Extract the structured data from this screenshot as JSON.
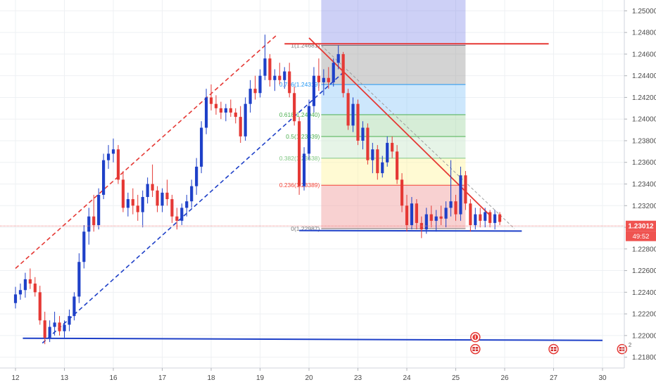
{
  "chart_data": {
    "type": "candlestick",
    "instrument_hint": "GBP/USD style price chart",
    "x_axis": {
      "ticks": [
        "12",
        "13",
        "16",
        "17",
        "18",
        "19",
        "20",
        "23",
        "24",
        "25",
        "26",
        "27",
        "30"
      ]
    },
    "y_axis": {
      "range": [
        1.217,
        1.251
      ],
      "ticks": [
        "1.21800",
        "1.22000",
        "1.22200",
        "1.22400",
        "1.22600",
        "1.22800",
        "1.23000",
        "1.23200",
        "1.23400",
        "1.23600",
        "1.23800",
        "1.24000",
        "1.24200",
        "1.24400",
        "1.24600",
        "1.24800",
        "1.25000"
      ]
    },
    "current_price": {
      "value": 1.23012,
      "label": "1.23012",
      "countdown": "49:52"
    },
    "fibonacci": {
      "start": {
        "x": 6.25,
        "price": 1.24681
      },
      "end": {
        "x": 9.2,
        "price": 1.22987
      },
      "levels": [
        {
          "ratio": 1,
          "price": 1.24681,
          "label": "1(1.24681)",
          "color": "#787878"
        },
        {
          "ratio": 0.786,
          "price": 1.24319,
          "label": "0.786(1.24319)",
          "color": "#2196f3"
        },
        {
          "ratio": 0.618,
          "price": 1.2404,
          "label": "0.618(1.24040)",
          "color": "#4caf50"
        },
        {
          "ratio": 0.5,
          "price": 1.23839,
          "label": "0.5(1.23839)",
          "color": "#4caf50"
        },
        {
          "ratio": 0.382,
          "price": 1.23638,
          "label": "0.382(1.23638)",
          "color": "#81c784"
        },
        {
          "ratio": 0.236,
          "price": 1.23389,
          "label": "0.236(1.23389)",
          "color": "#f44336"
        },
        {
          "ratio": 0,
          "price": 1.22987,
          "label": "0(1.22987)",
          "color": "#787878"
        }
      ],
      "zones": [
        {
          "from": 1.24681,
          "to": 1.24319,
          "color": "#9e9e9e"
        },
        {
          "from": 1.24319,
          "to": 1.2404,
          "color": "#90caf9"
        },
        {
          "from": 1.2404,
          "to": 1.23839,
          "color": "#a5d6a7"
        },
        {
          "from": 1.23839,
          "to": 1.23638,
          "color": "#c8e6c9"
        },
        {
          "from": 1.23638,
          "to": 1.23389,
          "color": "#fff59d"
        },
        {
          "from": 1.23389,
          "to": 1.22987,
          "color": "#ef9a9a"
        }
      ],
      "top_zone": {
        "from": 1.251,
        "to": 1.24681,
        "color": "#7c83e8"
      }
    },
    "drawings": {
      "channel_upper": {
        "x1": 0.0,
        "p1": 1.2262,
        "x2": 5.35,
        "p2": 1.2478,
        "color": "#e53935",
        "style": "dashed"
      },
      "channel_lower": {
        "x1": 0.55,
        "p1": 1.2193,
        "x2": 6.7,
        "p2": 1.2443,
        "color": "#1e40c8",
        "style": "dashed"
      },
      "support": {
        "x1": 0.15,
        "p1": 1.21975,
        "x2": 12.0,
        "p2": 1.21955,
        "color": "#1e40c8"
      },
      "fib_base": {
        "x1": 5.8,
        "p1": 1.2297,
        "x2": 10.35,
        "p2": 1.22965,
        "color": "#1e40c8"
      },
      "resistance": {
        "x1": 5.5,
        "p1": 1.24695,
        "x2": 10.9,
        "p2": 1.24695,
        "color": "#e53935"
      },
      "downtrend": {
        "x1": 6.0,
        "p1": 1.2475,
        "x2": 9.7,
        "p2": 1.2311,
        "color": "#e53935"
      },
      "diagonal_dotted": {
        "x1": 6.25,
        "p1": 1.24681,
        "x2": 10.2,
        "p2": 1.22987,
        "color": "#9e9e9e"
      }
    },
    "events": [
      {
        "x": 9.4,
        "y_top": 1.21985,
        "icon": "alert-icon",
        "color": "#e53935"
      },
      {
        "x": 9.4,
        "y_top": 1.21875,
        "icon": "flag-icon",
        "color": "#e53935"
      },
      {
        "x": 11.0,
        "y_top": 1.21875,
        "icon": "flag-icon",
        "color": "#e53935"
      },
      {
        "x": 12.4,
        "y_top": 1.21875,
        "icon": "flag-icon",
        "color": "#e53935"
      }
    ],
    "events_overflow_label": "2",
    "candles": [
      {
        "x": 0.0,
        "o": 1.223,
        "h": 1.2245,
        "l": 1.2225,
        "c": 1.2238
      },
      {
        "x": 0.1,
        "o": 1.2238,
        "h": 1.2248,
        "l": 1.2233,
        "c": 1.2242
      },
      {
        "x": 0.2,
        "o": 1.2242,
        "h": 1.2258,
        "l": 1.2235,
        "c": 1.2252
      },
      {
        "x": 0.3,
        "o": 1.2252,
        "h": 1.2262,
        "l": 1.2243,
        "c": 1.2248
      },
      {
        "x": 0.4,
        "o": 1.2248,
        "h": 1.2254,
        "l": 1.2236,
        "c": 1.224
      },
      {
        "x": 0.5,
        "o": 1.224,
        "h": 1.2246,
        "l": 1.221,
        "c": 1.2214
      },
      {
        "x": 0.6,
        "o": 1.2214,
        "h": 1.2222,
        "l": 1.2192,
        "c": 1.2198
      },
      {
        "x": 0.7,
        "o": 1.2198,
        "h": 1.2214,
        "l": 1.2194,
        "c": 1.2208
      },
      {
        "x": 0.8,
        "o": 1.2208,
        "h": 1.2222,
        "l": 1.22,
        "c": 1.2212
      },
      {
        "x": 0.9,
        "o": 1.2212,
        "h": 1.2218,
        "l": 1.22,
        "c": 1.2204
      },
      {
        "x": 1.0,
        "o": 1.2204,
        "h": 1.2214,
        "l": 1.2198,
        "c": 1.221
      },
      {
        "x": 1.1,
        "o": 1.221,
        "h": 1.2224,
        "l": 1.2204,
        "c": 1.2218
      },
      {
        "x": 1.2,
        "o": 1.2218,
        "h": 1.224,
        "l": 1.2214,
        "c": 1.2236
      },
      {
        "x": 1.3,
        "o": 1.2236,
        "h": 1.2276,
        "l": 1.223,
        "c": 1.2268
      },
      {
        "x": 1.4,
        "o": 1.2268,
        "h": 1.2302,
        "l": 1.2262,
        "c": 1.2296
      },
      {
        "x": 1.5,
        "o": 1.2296,
        "h": 1.2318,
        "l": 1.2284,
        "c": 1.231
      },
      {
        "x": 1.6,
        "o": 1.231,
        "h": 1.233,
        "l": 1.2296,
        "c": 1.2302
      },
      {
        "x": 1.7,
        "o": 1.2302,
        "h": 1.2336,
        "l": 1.2298,
        "c": 1.233
      },
      {
        "x": 1.8,
        "o": 1.233,
        "h": 1.2368,
        "l": 1.2326,
        "c": 1.2362
      },
      {
        "x": 1.9,
        "o": 1.2362,
        "h": 1.2376,
        "l": 1.2354,
        "c": 1.2368
      },
      {
        "x": 2.0,
        "o": 1.2368,
        "h": 1.2382,
        "l": 1.236,
        "c": 1.2372
      },
      {
        "x": 2.1,
        "o": 1.2372,
        "h": 1.2376,
        "l": 1.234,
        "c": 1.2344
      },
      {
        "x": 2.2,
        "o": 1.2344,
        "h": 1.2352,
        "l": 1.2314,
        "c": 1.2318
      },
      {
        "x": 2.3,
        "o": 1.2318,
        "h": 1.2332,
        "l": 1.231,
        "c": 1.2326
      },
      {
        "x": 2.4,
        "o": 1.2326,
        "h": 1.2336,
        "l": 1.2312,
        "c": 1.232
      },
      {
        "x": 2.5,
        "o": 1.232,
        "h": 1.233,
        "l": 1.2306,
        "c": 1.2314
      },
      {
        "x": 2.6,
        "o": 1.2314,
        "h": 1.2334,
        "l": 1.23,
        "c": 1.2328
      },
      {
        "x": 2.7,
        "o": 1.2328,
        "h": 1.2346,
        "l": 1.2322,
        "c": 1.234
      },
      {
        "x": 2.8,
        "o": 1.234,
        "h": 1.2358,
        "l": 1.2328,
        "c": 1.2334
      },
      {
        "x": 2.9,
        "o": 1.2334,
        "h": 1.2338,
        "l": 1.2314,
        "c": 1.232
      },
      {
        "x": 3.0,
        "o": 1.232,
        "h": 1.2336,
        "l": 1.2314,
        "c": 1.2332
      },
      {
        "x": 3.1,
        "o": 1.2332,
        "h": 1.2344,
        "l": 1.232,
        "c": 1.2326
      },
      {
        "x": 3.2,
        "o": 1.2326,
        "h": 1.233,
        "l": 1.2304,
        "c": 1.231
      },
      {
        "x": 3.3,
        "o": 1.231,
        "h": 1.2318,
        "l": 1.2298,
        "c": 1.2306
      },
      {
        "x": 3.4,
        "o": 1.2306,
        "h": 1.2322,
        "l": 1.2302,
        "c": 1.2318
      },
      {
        "x": 3.5,
        "o": 1.2318,
        "h": 1.233,
        "l": 1.231,
        "c": 1.2324
      },
      {
        "x": 3.6,
        "o": 1.2324,
        "h": 1.2344,
        "l": 1.2318,
        "c": 1.2338
      },
      {
        "x": 3.7,
        "o": 1.2338,
        "h": 1.2364,
        "l": 1.233,
        "c": 1.2356
      },
      {
        "x": 3.8,
        "o": 1.2356,
        "h": 1.2398,
        "l": 1.235,
        "c": 1.2392
      },
      {
        "x": 3.9,
        "o": 1.2392,
        "h": 1.2428,
        "l": 1.2386,
        "c": 1.242
      },
      {
        "x": 4.0,
        "o": 1.242,
        "h": 1.2432,
        "l": 1.2408,
        "c": 1.2414
      },
      {
        "x": 4.1,
        "o": 1.2414,
        "h": 1.2422,
        "l": 1.2404,
        "c": 1.241
      },
      {
        "x": 4.2,
        "o": 1.241,
        "h": 1.2416,
        "l": 1.24,
        "c": 1.2406
      },
      {
        "x": 4.3,
        "o": 1.2406,
        "h": 1.2414,
        "l": 1.2398,
        "c": 1.241
      },
      {
        "x": 4.4,
        "o": 1.241,
        "h": 1.2418,
        "l": 1.2402,
        "c": 1.2406
      },
      {
        "x": 4.5,
        "o": 1.2406,
        "h": 1.241,
        "l": 1.2396,
        "c": 1.2402
      },
      {
        "x": 4.6,
        "o": 1.2402,
        "h": 1.2412,
        "l": 1.2378,
        "c": 1.2384
      },
      {
        "x": 4.7,
        "o": 1.2384,
        "h": 1.242,
        "l": 1.238,
        "c": 1.2414
      },
      {
        "x": 4.8,
        "o": 1.2414,
        "h": 1.2436,
        "l": 1.2406,
        "c": 1.2428
      },
      {
        "x": 4.9,
        "o": 1.2428,
        "h": 1.244,
        "l": 1.2418,
        "c": 1.2424
      },
      {
        "x": 5.0,
        "o": 1.2424,
        "h": 1.2446,
        "l": 1.242,
        "c": 1.244
      },
      {
        "x": 5.1,
        "o": 1.244,
        "h": 1.2478,
        "l": 1.2436,
        "c": 1.2456
      },
      {
        "x": 5.2,
        "o": 1.2456,
        "h": 1.246,
        "l": 1.243,
        "c": 1.2436
      },
      {
        "x": 5.3,
        "o": 1.2436,
        "h": 1.2446,
        "l": 1.2426,
        "c": 1.244
      },
      {
        "x": 5.4,
        "o": 1.244,
        "h": 1.2452,
        "l": 1.2432,
        "c": 1.2436
      },
      {
        "x": 5.5,
        "o": 1.2436,
        "h": 1.2448,
        "l": 1.2428,
        "c": 1.2444
      },
      {
        "x": 5.6,
        "o": 1.2444,
        "h": 1.2452,
        "l": 1.242,
        "c": 1.2424
      },
      {
        "x": 5.7,
        "o": 1.2424,
        "h": 1.243,
        "l": 1.2394,
        "c": 1.2398
      },
      {
        "x": 5.8,
        "o": 1.2398,
        "h": 1.2402,
        "l": 1.233,
        "c": 1.2338
      },
      {
        "x": 5.9,
        "o": 1.2338,
        "h": 1.2374,
        "l": 1.2334,
        "c": 1.2368
      },
      {
        "x": 6.0,
        "o": 1.2368,
        "h": 1.2418,
        "l": 1.2362,
        "c": 1.2412
      },
      {
        "x": 6.1,
        "o": 1.2412,
        "h": 1.2448,
        "l": 1.2406,
        "c": 1.244
      },
      {
        "x": 6.2,
        "o": 1.244,
        "h": 1.2456,
        "l": 1.2426,
        "c": 1.2434
      },
      {
        "x": 6.3,
        "o": 1.2434,
        "h": 1.2446,
        "l": 1.2422,
        "c": 1.2438
      },
      {
        "x": 6.4,
        "o": 1.2438,
        "h": 1.2448,
        "l": 1.2428,
        "c": 1.2434
      },
      {
        "x": 6.5,
        "o": 1.2434,
        "h": 1.2456,
        "l": 1.243,
        "c": 1.2452
      },
      {
        "x": 6.6,
        "o": 1.2452,
        "h": 1.2468,
        "l": 1.2446,
        "c": 1.246
      },
      {
        "x": 6.7,
        "o": 1.246,
        "h": 1.2462,
        "l": 1.242,
        "c": 1.2424
      },
      {
        "x": 6.8,
        "o": 1.2424,
        "h": 1.2428,
        "l": 1.239,
        "c": 1.2394
      },
      {
        "x": 6.9,
        "o": 1.2394,
        "h": 1.242,
        "l": 1.2388,
        "c": 1.2414
      },
      {
        "x": 7.0,
        "o": 1.2414,
        "h": 1.2418,
        "l": 1.2376,
        "c": 1.238
      },
      {
        "x": 7.1,
        "o": 1.238,
        "h": 1.2398,
        "l": 1.2372,
        "c": 1.2392
      },
      {
        "x": 7.2,
        "o": 1.2392,
        "h": 1.2396,
        "l": 1.2358,
        "c": 1.2362
      },
      {
        "x": 7.3,
        "o": 1.2362,
        "h": 1.2378,
        "l": 1.235,
        "c": 1.2372
      },
      {
        "x": 7.4,
        "o": 1.2372,
        "h": 1.2376,
        "l": 1.2344,
        "c": 1.235
      },
      {
        "x": 7.5,
        "o": 1.235,
        "h": 1.2366,
        "l": 1.2346,
        "c": 1.236
      },
      {
        "x": 7.6,
        "o": 1.236,
        "h": 1.2384,
        "l": 1.2356,
        "c": 1.2378
      },
      {
        "x": 7.7,
        "o": 1.2378,
        "h": 1.2384,
        "l": 1.2364,
        "c": 1.237
      },
      {
        "x": 7.8,
        "o": 1.237,
        "h": 1.2376,
        "l": 1.234,
        "c": 1.2344
      },
      {
        "x": 7.9,
        "o": 1.2344,
        "h": 1.235,
        "l": 1.2314,
        "c": 1.232
      },
      {
        "x": 8.0,
        "o": 1.232,
        "h": 1.233,
        "l": 1.2296,
        "c": 1.2302
      },
      {
        "x": 8.1,
        "o": 1.2302,
        "h": 1.2328,
        "l": 1.2298,
        "c": 1.2322
      },
      {
        "x": 8.2,
        "o": 1.2322,
        "h": 1.2326,
        "l": 1.2298,
        "c": 1.2304
      },
      {
        "x": 8.3,
        "o": 1.2304,
        "h": 1.231,
        "l": 1.229,
        "c": 1.2298
      },
      {
        "x": 8.4,
        "o": 1.2298,
        "h": 1.2318,
        "l": 1.2294,
        "c": 1.2312
      },
      {
        "x": 8.5,
        "o": 1.2312,
        "h": 1.232,
        "l": 1.23,
        "c": 1.2306
      },
      {
        "x": 8.6,
        "o": 1.2306,
        "h": 1.2316,
        "l": 1.2296,
        "c": 1.231
      },
      {
        "x": 8.7,
        "o": 1.231,
        "h": 1.232,
        "l": 1.2302,
        "c": 1.2308
      },
      {
        "x": 8.8,
        "o": 1.2308,
        "h": 1.2324,
        "l": 1.23,
        "c": 1.2318
      },
      {
        "x": 8.9,
        "o": 1.2318,
        "h": 1.2362,
        "l": 1.231,
        "c": 1.2324
      },
      {
        "x": 9.0,
        "o": 1.2324,
        "h": 1.233,
        "l": 1.2306,
        "c": 1.2312
      },
      {
        "x": 9.1,
        "o": 1.2312,
        "h": 1.2356,
        "l": 1.2306,
        "c": 1.2348
      },
      {
        "x": 9.2,
        "o": 1.2348,
        "h": 1.2352,
        "l": 1.2316,
        "c": 1.2322
      },
      {
        "x": 9.3,
        "o": 1.2322,
        "h": 1.2326,
        "l": 1.2296,
        "c": 1.2302
      },
      {
        "x": 9.4,
        "o": 1.2302,
        "h": 1.2318,
        "l": 1.2298,
        "c": 1.2312
      },
      {
        "x": 9.5,
        "o": 1.2312,
        "h": 1.2318,
        "l": 1.23,
        "c": 1.2306
      },
      {
        "x": 9.6,
        "o": 1.2306,
        "h": 1.2318,
        "l": 1.23,
        "c": 1.2314
      },
      {
        "x": 9.7,
        "o": 1.2314,
        "h": 1.2316,
        "l": 1.23,
        "c": 1.2304
      },
      {
        "x": 9.8,
        "o": 1.2304,
        "h": 1.2316,
        "l": 1.2298,
        "c": 1.2312
      },
      {
        "x": 9.9,
        "o": 1.2312,
        "h": 1.2314,
        "l": 1.2302,
        "c": 1.2305
      }
    ]
  }
}
